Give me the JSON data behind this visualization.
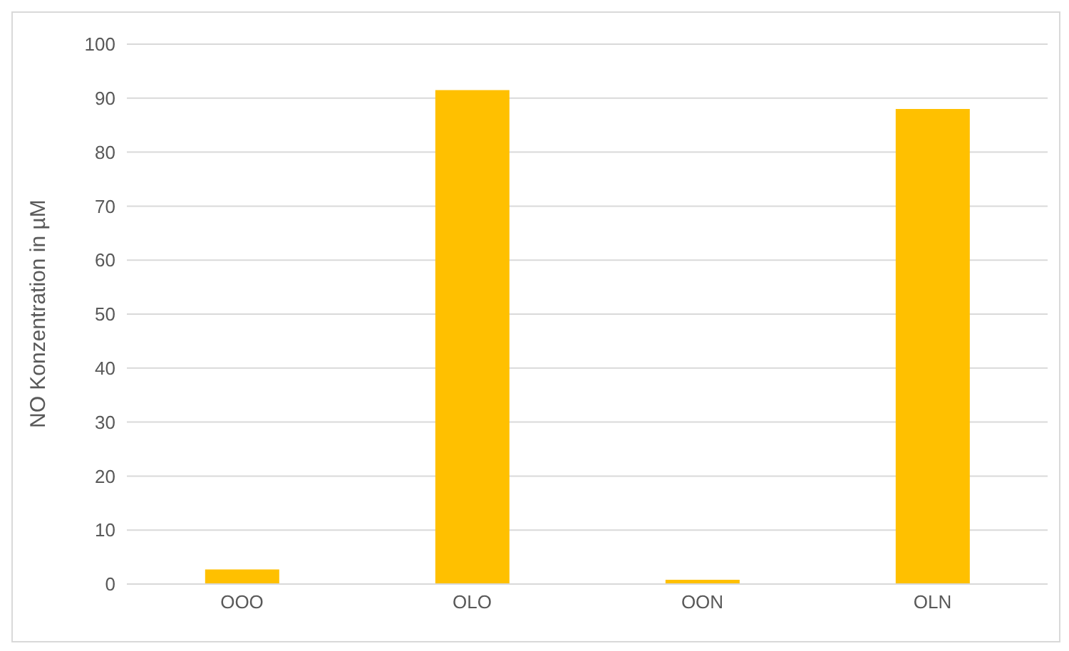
{
  "chart_data": {
    "type": "bar",
    "ylabel": "NO Konzentration in µM",
    "categories": [
      "OOO",
      "OLO",
      "OON",
      "OLN"
    ],
    "values": [
      2.7,
      91.5,
      0.8,
      88
    ],
    "color": "#ffc000",
    "ylim": [
      0,
      100
    ],
    "yticks": [
      0,
      10,
      20,
      30,
      40,
      50,
      60,
      70,
      80,
      90,
      100
    ],
    "grid": "y"
  }
}
